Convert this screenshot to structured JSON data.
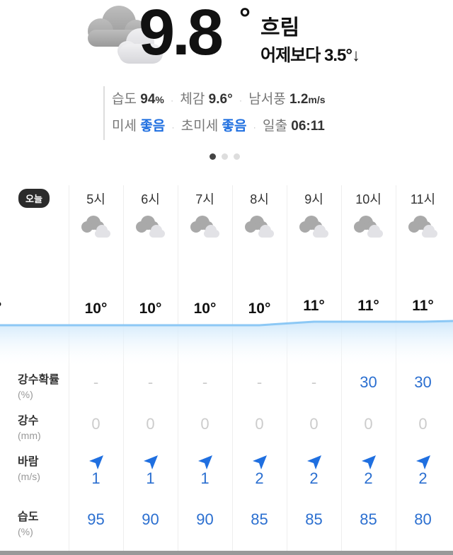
{
  "current": {
    "temp": "9.8",
    "degree": "°",
    "condition": "흐림",
    "comparison": "어제보다 3.5°↓",
    "icon": "cloudy-icon"
  },
  "details": {
    "humidity_label": "습도",
    "humidity_value": "94",
    "humidity_unit": "%",
    "feels_label": "체감",
    "feels_value": "9.6°",
    "wind_label": "남서풍",
    "wind_value": "1.2",
    "wind_unit": "m/s",
    "dust_label": "미세",
    "dust_value": "좋음",
    "fine_dust_label": "초미세",
    "fine_dust_value": "좋음",
    "sunrise_label": "일출",
    "sunrise_value": "06:11",
    "separator": "·"
  },
  "pager": {
    "pages": 3,
    "active": 0
  },
  "hourly": {
    "today_label": "오늘",
    "prev_temp_fragment": "°",
    "hours": [
      "5시",
      "6시",
      "7시",
      "8시",
      "9시",
      "10시",
      "11시"
    ],
    "temps": [
      "10°",
      "10°",
      "10°",
      "10°",
      "11°",
      "11°",
      "11°"
    ],
    "temp_values": [
      10,
      10,
      10,
      10,
      11,
      11,
      11
    ],
    "icon": "cloudy-icon",
    "rows": {
      "precip_prob": {
        "label": "강수확률",
        "unit": "(%)",
        "values": [
          "-",
          "-",
          "-",
          "-",
          "-",
          "30",
          "30"
        ]
      },
      "precip": {
        "label": "강수",
        "unit": "(mm)",
        "values": [
          "0",
          "0",
          "0",
          "0",
          "0",
          "0",
          "0"
        ]
      },
      "wind": {
        "label": "바람",
        "unit": "(m/s)",
        "values": [
          "1",
          "1",
          "1",
          "2",
          "2",
          "2",
          "2"
        ],
        "icon": "wind-direction-arrow-icon"
      },
      "humidity": {
        "label": "습도",
        "unit": "(%)",
        "values": [
          "95",
          "90",
          "90",
          "85",
          "85",
          "85",
          "80"
        ]
      }
    }
  },
  "colors": {
    "accent": "#2b6fd0",
    "line": "#8cc8f5"
  }
}
